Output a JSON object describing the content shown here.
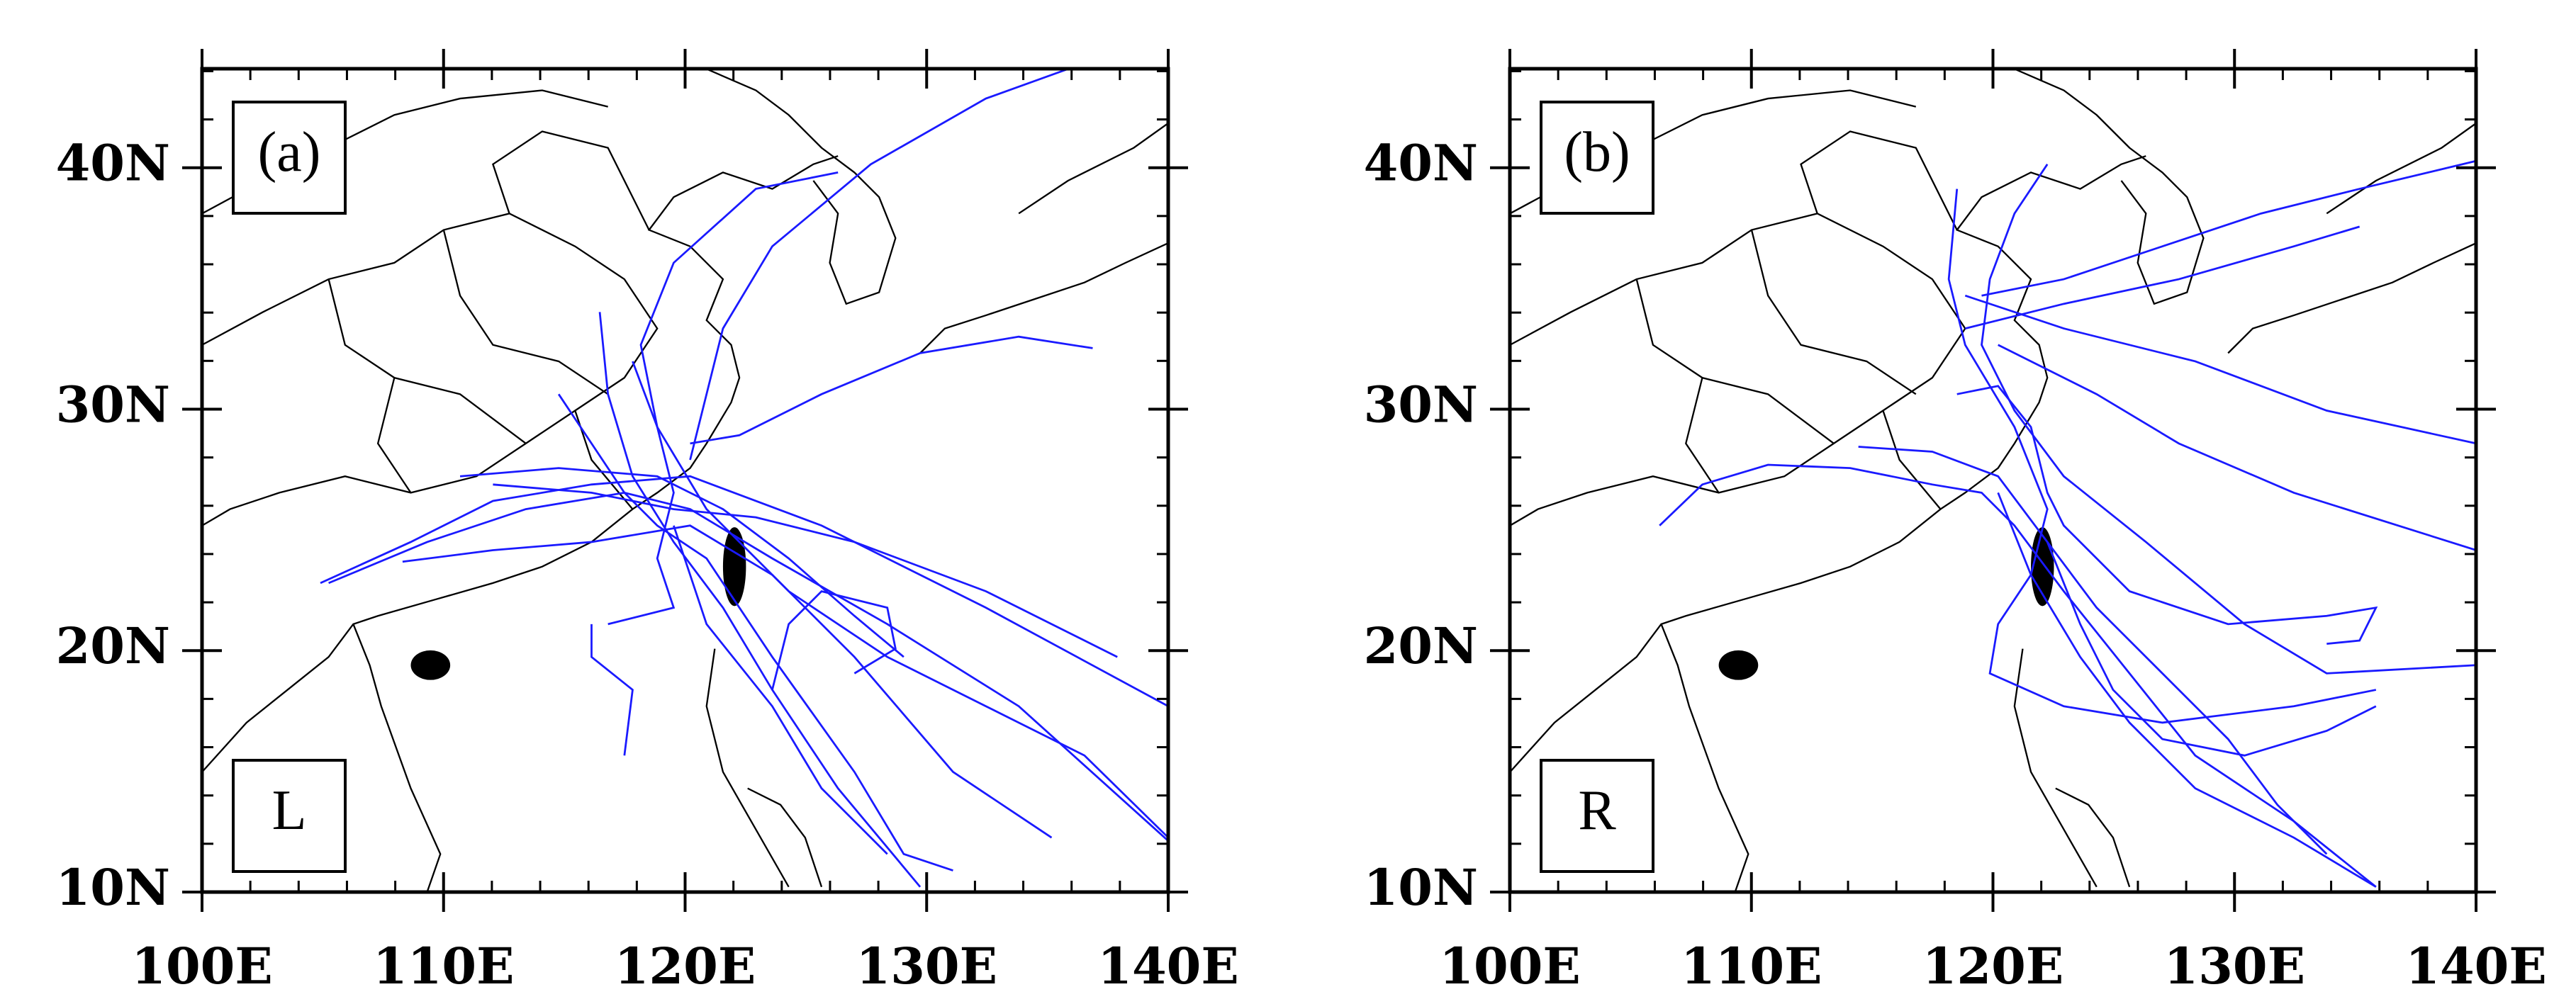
{
  "panels": [
    {
      "label": "(a)",
      "tag": "L",
      "xlim": [
        100,
        140
      ],
      "ylim": [
        10,
        44.1
      ],
      "xticks": [
        {
          "value": 100,
          "label": "100E"
        },
        {
          "value": 110,
          "label": "110E"
        },
        {
          "value": 120,
          "label": "120E"
        },
        {
          "value": 130,
          "label": "130E"
        },
        {
          "value": 140,
          "label": "140E"
        }
      ],
      "yticks": [
        {
          "value": 10,
          "label": "10N"
        },
        {
          "value": 20,
          "label": "20N"
        },
        {
          "value": 30,
          "label": "30N"
        },
        {
          "value": 40,
          "label": "40N"
        }
      ]
    },
    {
      "label": "(b)",
      "tag": "R",
      "xlim": [
        100,
        140
      ],
      "ylim": [
        10,
        44.1
      ],
      "xticks": [
        {
          "value": 100,
          "label": "100E"
        },
        {
          "value": 110,
          "label": "110E"
        },
        {
          "value": 120,
          "label": "120E"
        },
        {
          "value": 130,
          "label": "130E"
        },
        {
          "value": 140,
          "label": "140E"
        }
      ],
      "yticks": [
        {
          "value": 10,
          "label": "10N"
        },
        {
          "value": 20,
          "label": "20N"
        },
        {
          "value": 30,
          "label": "30N"
        },
        {
          "value": 40,
          "label": "40N"
        }
      ]
    }
  ]
}
